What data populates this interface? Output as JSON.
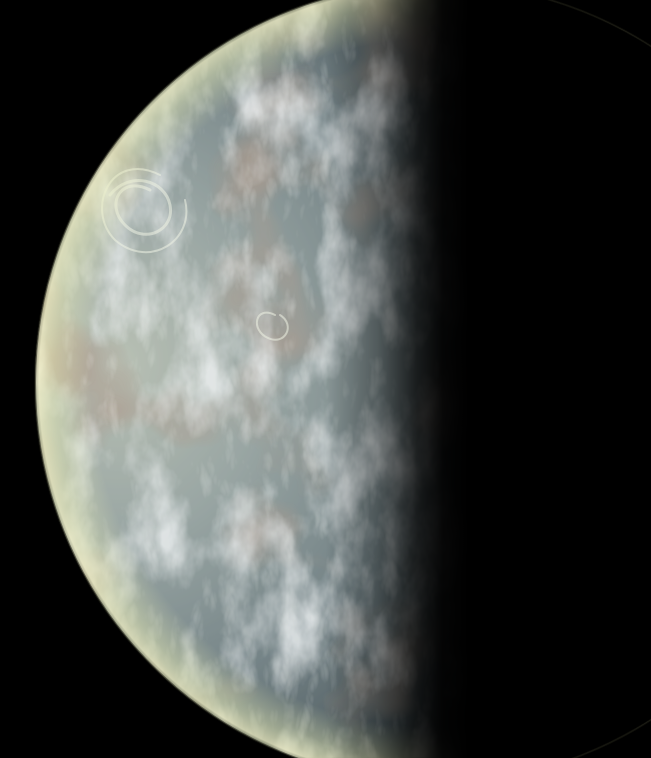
{
  "scene": {
    "subject": "planet",
    "background_color": "#000000",
    "day_side_color": "#c9d2c8",
    "limb_glow_color": "#e8ecb4",
    "ocean_tint_color": "#5d6f76",
    "land_tint_color": "#6b5446",
    "night_side_color": "#000000",
    "icon_name": "planet-crescent"
  }
}
